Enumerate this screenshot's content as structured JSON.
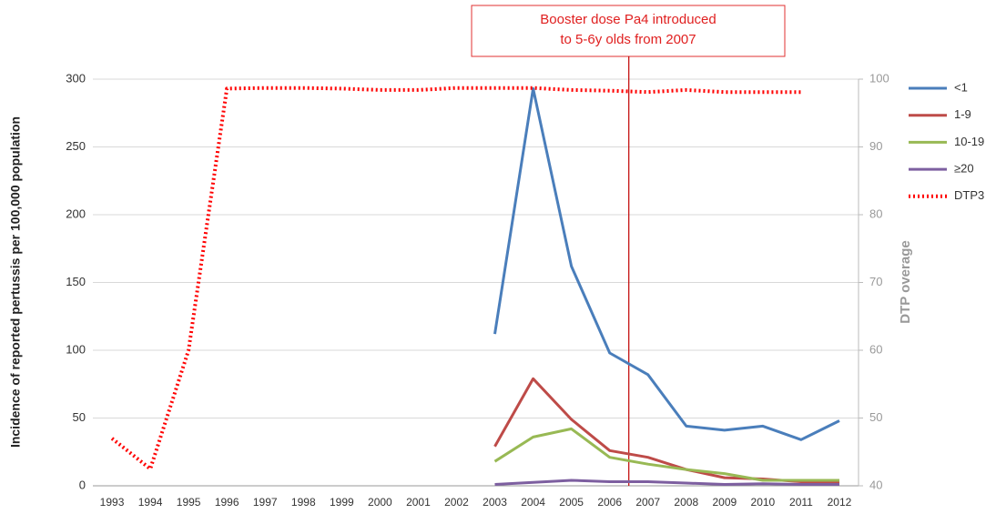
{
  "chart_data": {
    "type": "line",
    "annotation": [
      "Booster dose Pa4 introduced",
      "to 5-6y olds from 2007"
    ],
    "y_label": "Incidence of reported pertussis per 100,000 population",
    "y2_label": "DTP overage",
    "categories": [
      "1993",
      "1994",
      "1995",
      "1996",
      "1997",
      "1998",
      "1999",
      "2000",
      "2001",
      "2002",
      "2003",
      "2004",
      "2005",
      "2006",
      "2007",
      "2008",
      "2009",
      "2010",
      "2011",
      "2012"
    ],
    "series": [
      {
        "name": "<1",
        "color": "#4a7ebb",
        "values": [
          null,
          null,
          null,
          null,
          null,
          null,
          null,
          null,
          null,
          null,
          112,
          293,
          162,
          98,
          82,
          44,
          41,
          44,
          34,
          48
        ]
      },
      {
        "name": "1-9",
        "color": "#be4b48",
        "values": [
          null,
          null,
          null,
          null,
          null,
          null,
          null,
          null,
          null,
          null,
          29,
          79,
          49,
          26,
          21,
          12,
          6,
          5,
          3,
          3
        ]
      },
      {
        "name": "10-19",
        "color": "#98b954",
        "values": [
          null,
          null,
          null,
          null,
          null,
          null,
          null,
          null,
          null,
          null,
          18,
          36,
          42,
          21,
          16,
          12,
          9,
          4,
          4,
          4
        ]
      },
      {
        "name": "≥20",
        "color": "#7d5fa0",
        "values": [
          null,
          null,
          null,
          null,
          null,
          null,
          null,
          null,
          null,
          null,
          1,
          2.5,
          4,
          3,
          3,
          2,
          1,
          1.5,
          1,
          1
        ]
      },
      {
        "name": "DTP3",
        "color": "#ff0000",
        "axis": "y2",
        "style": "dotted",
        "values": [
          47,
          42.5,
          60,
          98.6,
          98.7,
          98.7,
          98.6,
          98.4,
          98.4,
          98.7,
          98.7,
          98.7,
          98.4,
          98.3,
          98.1,
          98.4,
          98.1,
          98.1,
          98.1,
          null
        ]
      }
    ],
    "ylim": [
      0,
      300
    ],
    "yticks": [
      0,
      50,
      100,
      150,
      200,
      250,
      300
    ],
    "y2lim": [
      40,
      100
    ],
    "y2ticks": [
      40,
      50,
      60,
      70,
      80,
      90,
      100
    ],
    "grid": true,
    "legend": "right"
  }
}
